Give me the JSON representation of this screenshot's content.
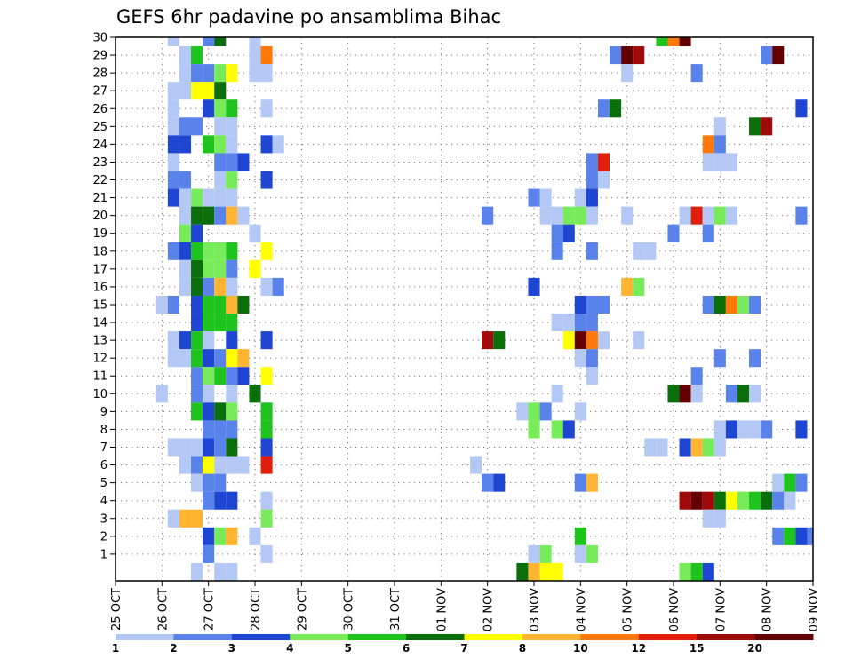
{
  "chart_data": {
    "type": "heatmap",
    "title": "GEFS 6hr padavine po ansamblima Bihac",
    "x_ticks": [
      "25 OCT",
      "26 OCT",
      "27 OCT",
      "28 OCT",
      "29 OCT",
      "30 OCT",
      "31 OCT",
      "01 NOV",
      "02 NOV",
      "03 NOV",
      "04 NOV",
      "05 NOV",
      "06 NOV",
      "07 NOV",
      "08 NOV",
      "09 NOV"
    ],
    "x_steps_per_day": 4,
    "y_range": [
      0,
      30
    ],
    "y_ticks": [
      1,
      2,
      3,
      4,
      5,
      6,
      7,
      8,
      9,
      10,
      11,
      12,
      13,
      14,
      15,
      16,
      17,
      18,
      19,
      20,
      21,
      22,
      23,
      24,
      25,
      26,
      27,
      28,
      29,
      30
    ],
    "grid": "dotted",
    "colorbar": {
      "placement": "bottom",
      "labels": [
        "1",
        "2",
        "3",
        "4",
        "5",
        "6",
        "7",
        "8",
        "10",
        "12",
        "15",
        "20"
      ],
      "colors": [
        "#b4c8f5",
        "#5a82eb",
        "#1e46d2",
        "#78eb5a",
        "#1ec31e",
        "#0a6e0a",
        "#ffff00",
        "#ffb432",
        "#ff780a",
        "#e11e0a",
        "#a00a0a",
        "#640000"
      ]
    },
    "member_rows": [
      {
        "member": 30,
        "cells": [
          [
            5,
            0
          ],
          [
            8,
            1
          ],
          [
            9,
            5
          ],
          [
            12,
            0
          ],
          [
            47,
            4
          ],
          [
            48,
            8
          ],
          [
            49,
            11
          ]
        ]
      },
      {
        "member": 29,
        "cells": [
          [
            6,
            0
          ],
          [
            7,
            4
          ],
          [
            12,
            0
          ],
          [
            13,
            8
          ],
          [
            43,
            1
          ],
          [
            44,
            11
          ],
          [
            45,
            10
          ],
          [
            56,
            1
          ],
          [
            57,
            11
          ]
        ]
      },
      {
        "member": 28,
        "cells": [
          [
            6,
            0
          ],
          [
            7,
            1
          ],
          [
            8,
            1
          ],
          [
            9,
            3
          ],
          [
            10,
            6
          ],
          [
            12,
            0
          ],
          [
            13,
            0
          ],
          [
            44,
            0
          ],
          [
            50,
            1
          ]
        ]
      },
      {
        "member": 27,
        "cells": [
          [
            5,
            0
          ],
          [
            6,
            0
          ],
          [
            7,
            6
          ],
          [
            8,
            6
          ],
          [
            9,
            5
          ]
        ]
      },
      {
        "member": 26,
        "cells": [
          [
            5,
            0
          ],
          [
            8,
            2
          ],
          [
            9,
            3
          ],
          [
            10,
            4
          ],
          [
            13,
            0
          ],
          [
            42,
            1
          ],
          [
            43,
            5
          ],
          [
            59,
            2
          ]
        ]
      },
      {
        "member": 25,
        "cells": [
          [
            5,
            0
          ],
          [
            6,
            1
          ],
          [
            7,
            1
          ],
          [
            9,
            0
          ],
          [
            10,
            0
          ],
          [
            52,
            0
          ],
          [
            55,
            5
          ],
          [
            56,
            10
          ]
        ]
      },
      {
        "member": 24,
        "cells": [
          [
            5,
            2
          ],
          [
            6,
            2
          ],
          [
            8,
            4
          ],
          [
            9,
            3
          ],
          [
            10,
            0
          ],
          [
            13,
            2
          ],
          [
            14,
            0
          ],
          [
            51,
            8
          ],
          [
            52,
            1
          ]
        ]
      },
      {
        "member": 23,
        "cells": [
          [
            5,
            0
          ],
          [
            9,
            1
          ],
          [
            10,
            1
          ],
          [
            11,
            2
          ],
          [
            41,
            1
          ],
          [
            42,
            9
          ],
          [
            51,
            0
          ],
          [
            52,
            0
          ],
          [
            53,
            0
          ]
        ]
      },
      {
        "member": 22,
        "cells": [
          [
            5,
            1
          ],
          [
            6,
            1
          ],
          [
            9,
            0
          ],
          [
            10,
            3
          ],
          [
            13,
            2
          ],
          [
            41,
            1
          ],
          [
            42,
            0
          ]
        ]
      },
      {
        "member": 21,
        "cells": [
          [
            5,
            2
          ],
          [
            6,
            0
          ],
          [
            7,
            3
          ],
          [
            8,
            0
          ],
          [
            9,
            0
          ],
          [
            10,
            0
          ],
          [
            36,
            1
          ],
          [
            37,
            0
          ],
          [
            40,
            0
          ],
          [
            41,
            2
          ]
        ]
      },
      {
        "member": 20,
        "cells": [
          [
            6,
            0
          ],
          [
            7,
            5
          ],
          [
            8,
            5
          ],
          [
            9,
            1
          ],
          [
            10,
            7
          ],
          [
            11,
            0
          ],
          [
            32,
            1
          ],
          [
            37,
            0
          ],
          [
            38,
            0
          ],
          [
            39,
            3
          ],
          [
            40,
            3
          ],
          [
            41,
            0
          ],
          [
            44,
            0
          ],
          [
            49,
            0
          ],
          [
            50,
            9
          ],
          [
            51,
            0
          ],
          [
            52,
            3
          ],
          [
            53,
            0
          ],
          [
            59,
            1
          ]
        ]
      },
      {
        "member": 19,
        "cells": [
          [
            6,
            3
          ],
          [
            7,
            2
          ],
          [
            12,
            0
          ],
          [
            38,
            1
          ],
          [
            39,
            2
          ],
          [
            48,
            1
          ],
          [
            51,
            1
          ]
        ]
      },
      {
        "member": 18,
        "cells": [
          [
            5,
            1
          ],
          [
            6,
            2
          ],
          [
            7,
            4
          ],
          [
            8,
            3
          ],
          [
            9,
            3
          ],
          [
            10,
            4
          ],
          [
            13,
            6
          ],
          [
            38,
            1
          ],
          [
            41,
            1
          ],
          [
            45,
            0
          ],
          [
            46,
            0
          ]
        ]
      },
      {
        "member": 17,
        "cells": [
          [
            6,
            0
          ],
          [
            7,
            5
          ],
          [
            8,
            3
          ],
          [
            9,
            3
          ],
          [
            10,
            1
          ],
          [
            12,
            6
          ]
        ]
      },
      {
        "member": 16,
        "cells": [
          [
            6,
            0
          ],
          [
            7,
            5
          ],
          [
            8,
            1
          ],
          [
            9,
            7
          ],
          [
            10,
            0
          ],
          [
            13,
            0
          ],
          [
            14,
            1
          ],
          [
            36,
            2
          ],
          [
            44,
            7
          ],
          [
            45,
            3
          ]
        ]
      },
      {
        "member": 15,
        "cells": [
          [
            4,
            0
          ],
          [
            5,
            1
          ],
          [
            7,
            2
          ],
          [
            8,
            4
          ],
          [
            9,
            4
          ],
          [
            10,
            7
          ],
          [
            11,
            5
          ],
          [
            40,
            2
          ],
          [
            41,
            1
          ],
          [
            42,
            1
          ],
          [
            51,
            1
          ],
          [
            52,
            5
          ],
          [
            53,
            8
          ],
          [
            54,
            3
          ],
          [
            55,
            1
          ]
        ]
      },
      {
        "member": 14,
        "cells": [
          [
            7,
            2
          ],
          [
            8,
            4
          ],
          [
            9,
            4
          ],
          [
            10,
            4
          ],
          [
            38,
            0
          ],
          [
            39,
            0
          ],
          [
            40,
            1
          ],
          [
            41,
            1
          ]
        ]
      },
      {
        "member": 13,
        "cells": [
          [
            5,
            0
          ],
          [
            6,
            2
          ],
          [
            7,
            4
          ],
          [
            8,
            0
          ],
          [
            10,
            2
          ],
          [
            13,
            2
          ],
          [
            32,
            10
          ],
          [
            33,
            5
          ],
          [
            39,
            6
          ],
          [
            40,
            11
          ],
          [
            41,
            8
          ],
          [
            42,
            0
          ],
          [
            45,
            0
          ]
        ]
      },
      {
        "member": 12,
        "cells": [
          [
            5,
            0
          ],
          [
            6,
            0
          ],
          [
            7,
            4
          ],
          [
            8,
            2
          ],
          [
            9,
            1
          ],
          [
            10,
            6
          ],
          [
            11,
            7
          ],
          [
            40,
            0
          ],
          [
            41,
            1
          ],
          [
            52,
            1
          ],
          [
            55,
            1
          ]
        ]
      },
      {
        "member": 11,
        "cells": [
          [
            7,
            1
          ],
          [
            8,
            3
          ],
          [
            9,
            4
          ],
          [
            10,
            1
          ],
          [
            11,
            2
          ],
          [
            13,
            6
          ],
          [
            41,
            0
          ],
          [
            50,
            1
          ]
        ]
      },
      {
        "member": 10,
        "cells": [
          [
            4,
            0
          ],
          [
            7,
            1
          ],
          [
            8,
            0
          ],
          [
            10,
            0
          ],
          [
            12,
            5
          ],
          [
            38,
            0
          ],
          [
            48,
            5
          ],
          [
            49,
            11
          ],
          [
            50,
            0
          ],
          [
            53,
            1
          ],
          [
            54,
            5
          ],
          [
            55,
            0
          ]
        ]
      },
      {
        "member": 9,
        "cells": [
          [
            7,
            4
          ],
          [
            8,
            2
          ],
          [
            9,
            5
          ],
          [
            10,
            3
          ],
          [
            13,
            4
          ],
          [
            35,
            0
          ],
          [
            36,
            3
          ],
          [
            37,
            1
          ],
          [
            40,
            0
          ]
        ]
      },
      {
        "member": 8,
        "cells": [
          [
            8,
            1
          ],
          [
            9,
            1
          ],
          [
            10,
            1
          ],
          [
            13,
            4
          ],
          [
            36,
            3
          ],
          [
            38,
            3
          ],
          [
            39,
            2
          ],
          [
            52,
            0
          ],
          [
            53,
            2
          ],
          [
            54,
            0
          ],
          [
            55,
            0
          ],
          [
            56,
            1
          ],
          [
            59,
            2
          ]
        ]
      },
      {
        "member": 7,
        "cells": [
          [
            5,
            0
          ],
          [
            6,
            0
          ],
          [
            7,
            0
          ],
          [
            8,
            2
          ],
          [
            9,
            1
          ],
          [
            10,
            5
          ],
          [
            13,
            2
          ],
          [
            46,
            0
          ],
          [
            47,
            0
          ],
          [
            49,
            2
          ],
          [
            50,
            7
          ],
          [
            51,
            3
          ],
          [
            52,
            0
          ]
        ]
      },
      {
        "member": 6,
        "cells": [
          [
            6,
            0
          ],
          [
            7,
            1
          ],
          [
            8,
            6
          ],
          [
            9,
            0
          ],
          [
            10,
            0
          ],
          [
            11,
            0
          ],
          [
            13,
            9
          ],
          [
            31,
            0
          ]
        ]
      },
      {
        "member": 5,
        "cells": [
          [
            7,
            0
          ],
          [
            8,
            1
          ],
          [
            9,
            1
          ],
          [
            32,
            1
          ],
          [
            33,
            2
          ],
          [
            40,
            1
          ],
          [
            41,
            7
          ],
          [
            57,
            0
          ],
          [
            58,
            4
          ],
          [
            59,
            1
          ]
        ]
      },
      {
        "member": 4,
        "cells": [
          [
            8,
            1
          ],
          [
            9,
            2
          ],
          [
            10,
            2
          ],
          [
            13,
            0
          ],
          [
            49,
            10
          ],
          [
            50,
            11
          ],
          [
            51,
            10
          ],
          [
            52,
            5
          ],
          [
            53,
            6
          ],
          [
            54,
            3
          ],
          [
            55,
            4
          ],
          [
            56,
            5
          ],
          [
            57,
            1
          ],
          [
            58,
            0
          ]
        ]
      },
      {
        "member": 3,
        "cells": [
          [
            5,
            0
          ],
          [
            6,
            7
          ],
          [
            7,
            7
          ],
          [
            13,
            3
          ],
          [
            51,
            0
          ],
          [
            52,
            0
          ]
        ]
      },
      {
        "member": 2,
        "cells": [
          [
            8,
            2
          ],
          [
            9,
            3
          ],
          [
            10,
            7
          ],
          [
            12,
            0
          ],
          [
            40,
            4
          ],
          [
            57,
            1
          ],
          [
            58,
            4
          ],
          [
            59,
            2
          ],
          [
            60,
            1
          ]
        ]
      },
      {
        "member": 1,
        "cells": [
          [
            8,
            1
          ],
          [
            13,
            0
          ],
          [
            36,
            0
          ],
          [
            37,
            3
          ],
          [
            40,
            0
          ],
          [
            41,
            3
          ]
        ]
      },
      {
        "member": 0,
        "cells": [
          [
            7,
            0
          ],
          [
            9,
            0
          ],
          [
            10,
            0
          ],
          [
            35,
            5
          ],
          [
            36,
            7
          ],
          [
            37,
            6
          ],
          [
            38,
            6
          ],
          [
            49,
            3
          ],
          [
            50,
            4
          ],
          [
            51,
            2
          ]
        ]
      }
    ]
  }
}
